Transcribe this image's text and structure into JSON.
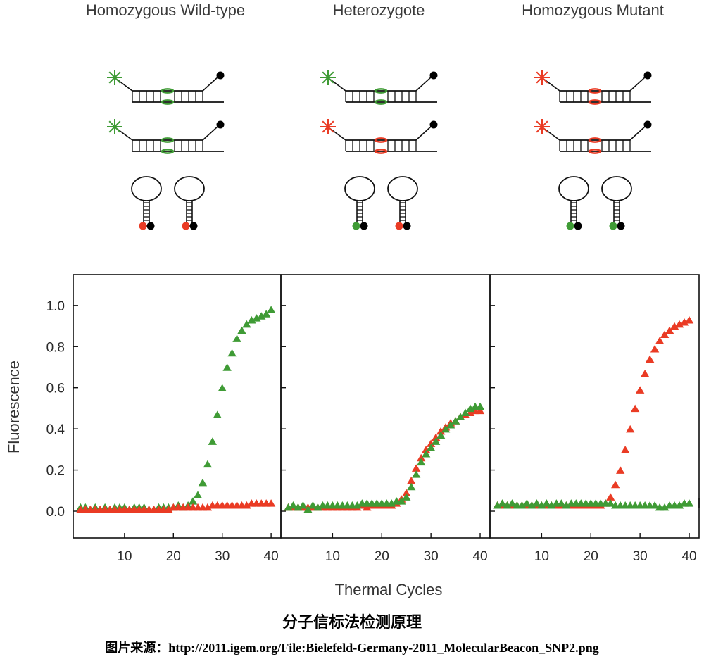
{
  "colors": {
    "wildtype": "#3f9b35",
    "mutant": "#ea3b24",
    "quencher": "#000000",
    "axis": "#111111"
  },
  "chart_data": {
    "type": "scatter",
    "panels": [
      {
        "title": "Homozygous Wild-type",
        "series": [
          {
            "color": "green",
            "marker": "triangle",
            "x": [
              1,
              2,
              3,
              4,
              5,
              6,
              7,
              8,
              9,
              10,
              11,
              12,
              13,
              14,
              15,
              16,
              17,
              18,
              19,
              20,
              21,
              22,
              23,
              24,
              25,
              26,
              27,
              28,
              29,
              30,
              31,
              32,
              33,
              34,
              35,
              36,
              37,
              38,
              39,
              40
            ],
            "y": [
              0.02,
              0.02,
              0.01,
              0.02,
              0.01,
              0.02,
              0.01,
              0.02,
              0.02,
              0.02,
              0.01,
              0.02,
              0.02,
              0.02,
              0.01,
              0.01,
              0.02,
              0.02,
              0.02,
              0.02,
              0.03,
              0.02,
              0.03,
              0.05,
              0.08,
              0.14,
              0.23,
              0.34,
              0.47,
              0.6,
              0.7,
              0.77,
              0.84,
              0.88,
              0.91,
              0.93,
              0.94,
              0.95,
              0.96,
              0.98
            ]
          },
          {
            "color": "red",
            "marker": "triangle",
            "x": [
              1,
              2,
              3,
              4,
              5,
              6,
              7,
              8,
              9,
              10,
              11,
              12,
              13,
              14,
              15,
              16,
              17,
              18,
              19,
              20,
              21,
              22,
              23,
              24,
              25,
              26,
              27,
              28,
              29,
              30,
              31,
              32,
              33,
              34,
              35,
              36,
              37,
              38,
              39,
              40
            ],
            "y": [
              0.01,
              0.01,
              0.01,
              0.01,
              0.01,
              0.01,
              0.01,
              0.01,
              0.01,
              0.01,
              0.01,
              0.01,
              0.01,
              0.01,
              0.01,
              0.01,
              0.01,
              0.01,
              0.01,
              0.02,
              0.02,
              0.02,
              0.02,
              0.02,
              0.02,
              0.02,
              0.02,
              0.03,
              0.03,
              0.03,
              0.03,
              0.03,
              0.03,
              0.03,
              0.03,
              0.04,
              0.04,
              0.04,
              0.04,
              0.04
            ]
          }
        ]
      },
      {
        "title": "Heterozygote",
        "series": [
          {
            "color": "red",
            "marker": "triangle",
            "x": [
              1,
              2,
              3,
              4,
              5,
              6,
              7,
              8,
              9,
              10,
              11,
              12,
              13,
              14,
              15,
              16,
              17,
              18,
              19,
              20,
              21,
              22,
              23,
              24,
              25,
              26,
              27,
              28,
              29,
              30,
              31,
              32,
              33,
              34,
              35,
              36,
              37,
              38,
              39,
              40
            ],
            "y": [
              0.02,
              0.02,
              0.02,
              0.02,
              0.02,
              0.02,
              0.02,
              0.02,
              0.02,
              0.02,
              0.02,
              0.02,
              0.02,
              0.02,
              0.02,
              0.03,
              0.02,
              0.03,
              0.03,
              0.03,
              0.03,
              0.03,
              0.04,
              0.06,
              0.09,
              0.15,
              0.21,
              0.26,
              0.3,
              0.33,
              0.36,
              0.39,
              0.41,
              0.43,
              0.44,
              0.46,
              0.47,
              0.48,
              0.49,
              0.49
            ]
          },
          {
            "color": "green",
            "marker": "triangle",
            "x": [
              1,
              2,
              3,
              4,
              5,
              6,
              7,
              8,
              9,
              10,
              11,
              12,
              13,
              14,
              15,
              16,
              17,
              18,
              19,
              20,
              21,
              22,
              23,
              24,
              25,
              26,
              27,
              28,
              29,
              30,
              31,
              32,
              33,
              34,
              35,
              36,
              37,
              38,
              39,
              40
            ],
            "y": [
              0.02,
              0.03,
              0.02,
              0.03,
              0.01,
              0.03,
              0.02,
              0.03,
              0.03,
              0.03,
              0.03,
              0.03,
              0.03,
              0.03,
              0.03,
              0.04,
              0.04,
              0.04,
              0.04,
              0.04,
              0.04,
              0.04,
              0.05,
              0.05,
              0.07,
              0.12,
              0.18,
              0.24,
              0.28,
              0.31,
              0.34,
              0.37,
              0.4,
              0.42,
              0.44,
              0.46,
              0.48,
              0.5,
              0.51,
              0.51
            ]
          }
        ]
      },
      {
        "title": "Homozygous Mutant",
        "series": [
          {
            "color": "red",
            "marker": "triangle",
            "x": [
              1,
              2,
              3,
              4,
              5,
              6,
              7,
              8,
              9,
              10,
              11,
              12,
              13,
              14,
              15,
              16,
              17,
              18,
              19,
              20,
              21,
              22,
              23,
              24,
              25,
              26,
              27,
              28,
              29,
              30,
              31,
              32,
              33,
              34,
              35,
              36,
              37,
              38,
              39,
              40
            ],
            "y": [
              0.03,
              0.03,
              0.03,
              0.03,
              0.03,
              0.03,
              0.03,
              0.03,
              0.03,
              0.03,
              0.03,
              0.03,
              0.03,
              0.03,
              0.03,
              0.03,
              0.03,
              0.03,
              0.03,
              0.03,
              0.03,
              0.03,
              0.04,
              0.07,
              0.13,
              0.2,
              0.3,
              0.4,
              0.5,
              0.59,
              0.67,
              0.74,
              0.79,
              0.83,
              0.86,
              0.88,
              0.9,
              0.91,
              0.92,
              0.93
            ]
          },
          {
            "color": "green",
            "marker": "triangle",
            "x": [
              1,
              2,
              3,
              4,
              5,
              6,
              7,
              8,
              9,
              10,
              11,
              12,
              13,
              14,
              15,
              16,
              17,
              18,
              19,
              20,
              21,
              22,
              23,
              24,
              25,
              26,
              27,
              28,
              29,
              30,
              31,
              32,
              33,
              34,
              35,
              36,
              37,
              38,
              39,
              40
            ],
            "y": [
              0.03,
              0.04,
              0.03,
              0.04,
              0.03,
              0.03,
              0.04,
              0.03,
              0.04,
              0.03,
              0.04,
              0.03,
              0.04,
              0.04,
              0.03,
              0.04,
              0.04,
              0.04,
              0.04,
              0.04,
              0.04,
              0.04,
              0.04,
              0.04,
              0.03,
              0.03,
              0.03,
              0.03,
              0.03,
              0.03,
              0.03,
              0.03,
              0.03,
              0.02,
              0.02,
              0.03,
              0.03,
              0.03,
              0.04,
              0.04
            ]
          }
        ]
      }
    ],
    "x_axis": {
      "label": "Thermal Cycles",
      "ticks": [
        10,
        20,
        30,
        40
      ],
      "range": [
        -0.5,
        42
      ]
    },
    "y_axis": {
      "label": "Fluorescence",
      "ticks": [
        "0.0",
        "0.2",
        "0.4",
        "0.6",
        "0.8",
        "1.0"
      ],
      "range": [
        -0.13,
        1.15
      ]
    },
    "grid": false,
    "legend": "none"
  },
  "schematic": [
    {
      "strands": [
        {
          "fluor": "green",
          "match": "green"
        },
        {
          "fluor": "green",
          "match": "green"
        }
      ],
      "beacons": [
        "red",
        "red"
      ]
    },
    {
      "strands": [
        {
          "fluor": "green",
          "match": "green"
        },
        {
          "fluor": "red",
          "match": "red"
        }
      ],
      "beacons": [
        "green",
        "red"
      ]
    },
    {
      "strands": [
        {
          "fluor": "red",
          "match": "red"
        },
        {
          "fluor": "red",
          "match": "red"
        }
      ],
      "beacons": [
        "green",
        "green"
      ]
    }
  ],
  "caption": "分子信标法检测原理",
  "source": "图片来源：http://2011.igem.org/File:Bielefeld-Germany-2011_MolecularBeacon_SNP2.png"
}
